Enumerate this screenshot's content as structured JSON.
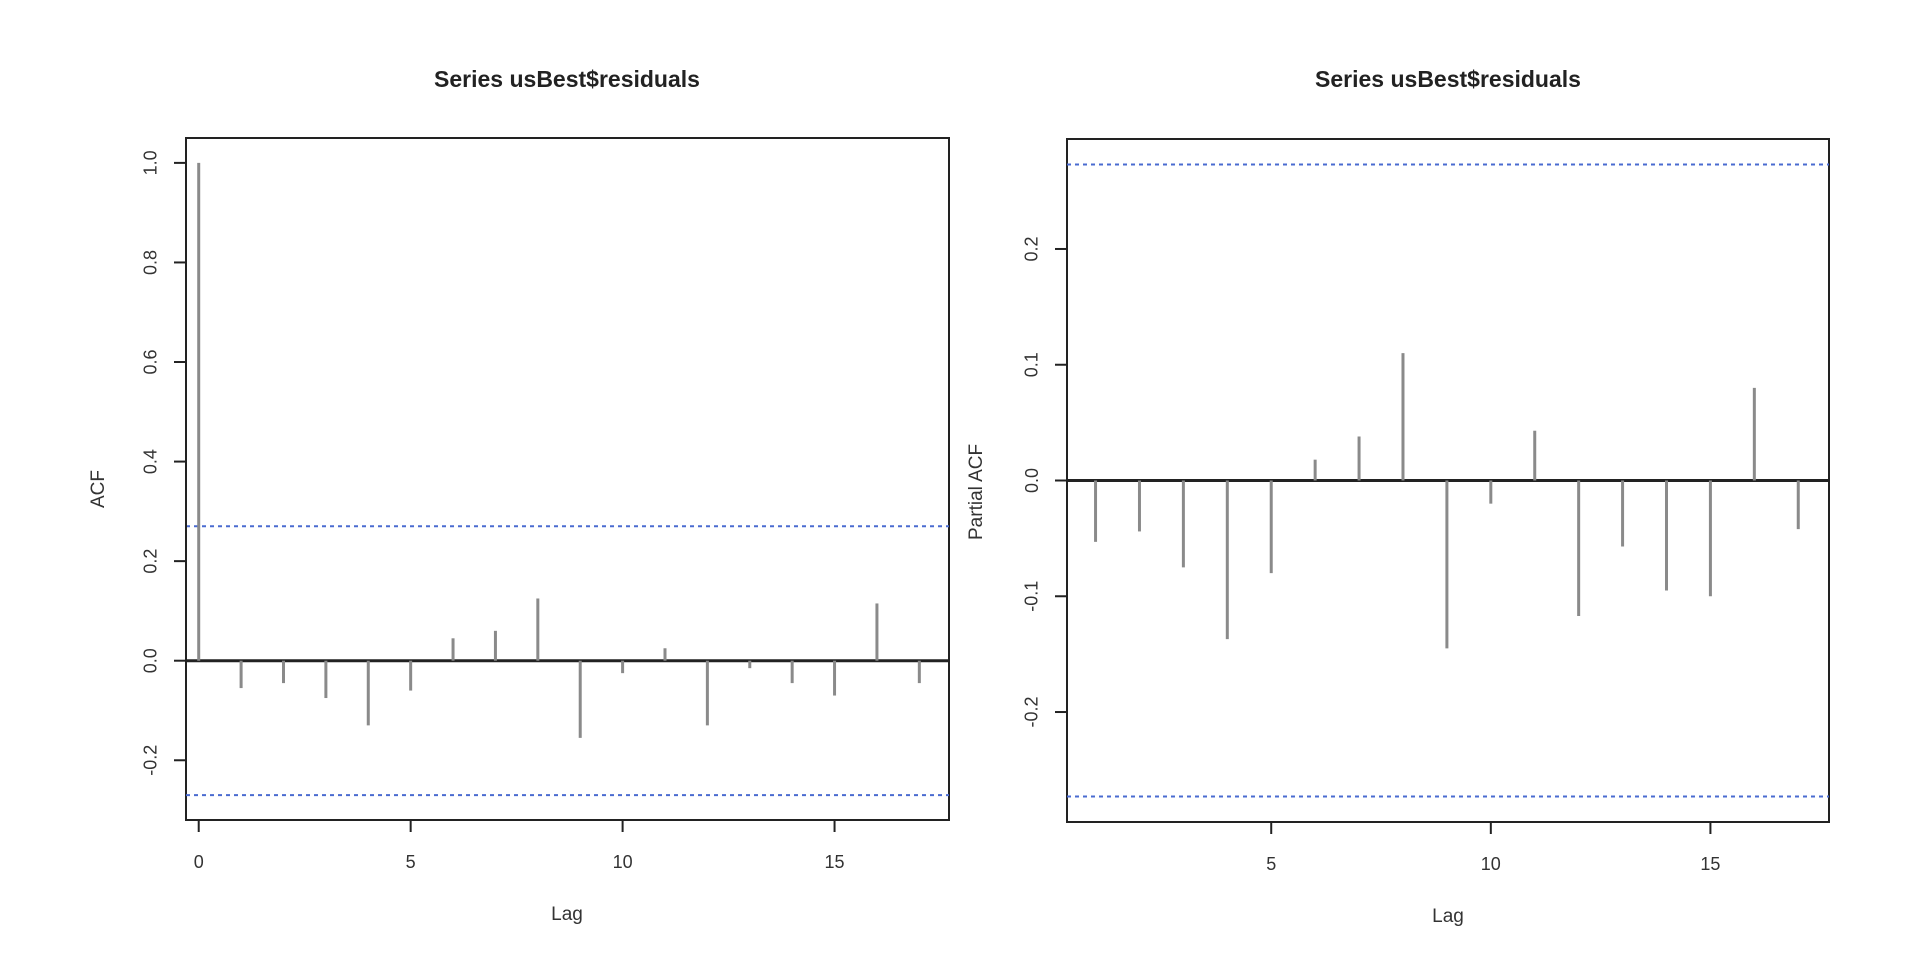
{
  "chart_data": [
    {
      "type": "bar",
      "subtype": "acf-stem",
      "title": "Series  usBest$residuals",
      "xlabel": "Lag",
      "ylabel": "ACF",
      "x": [
        0,
        1,
        2,
        3,
        4,
        5,
        6,
        7,
        8,
        9,
        10,
        11,
        12,
        13,
        14,
        15,
        16,
        17
      ],
      "values": [
        1.0,
        -0.055,
        -0.045,
        -0.075,
        -0.13,
        -0.06,
        0.045,
        0.06,
        0.125,
        -0.155,
        -0.025,
        0.025,
        -0.13,
        -0.015,
        -0.045,
        -0.07,
        0.115,
        -0.045
      ],
      "confidence_bounds": [
        -0.27,
        0.27
      ],
      "xticks": [
        0,
        5,
        10,
        15
      ],
      "yticks": [
        -0.2,
        0.0,
        0.2,
        0.4,
        0.6,
        0.8,
        1.0
      ],
      "ytick_labels": [
        "-0.2",
        "0.0",
        "0.2",
        "0.4",
        "0.6",
        "0.8",
        "1.0"
      ],
      "xlim": [
        -0.3,
        17.7
      ],
      "ylim": [
        -0.32,
        1.05
      ],
      "grid": false,
      "legend": null
    },
    {
      "type": "bar",
      "subtype": "pacf-stem",
      "title": "Series  usBest$residuals",
      "xlabel": "Lag",
      "ylabel": "Partial ACF",
      "x": [
        1,
        2,
        3,
        4,
        5,
        6,
        7,
        8,
        9,
        10,
        11,
        12,
        13,
        14,
        15,
        16,
        17
      ],
      "values": [
        -0.053,
        -0.044,
        -0.075,
        -0.137,
        -0.08,
        0.018,
        0.038,
        0.11,
        -0.145,
        -0.02,
        0.043,
        -0.117,
        -0.057,
        -0.095,
        -0.1,
        0.08,
        -0.042
      ],
      "confidence_bounds": [
        -0.273,
        0.273
      ],
      "xticks": [
        5,
        10,
        15
      ],
      "yticks": [
        -0.2,
        -0.1,
        0.0,
        0.1,
        0.2
      ],
      "ytick_labels": [
        "-0.2",
        "-0.1",
        "0.0",
        "0.1",
        "0.2"
      ],
      "xlim": [
        0.35,
        17.7
      ],
      "ylim": [
        -0.295,
        0.295
      ],
      "grid": false,
      "legend": null
    }
  ],
  "colors": {
    "stem": "#8a8a8a",
    "axis": "#222222",
    "ci_line": "#4a6bd0"
  }
}
